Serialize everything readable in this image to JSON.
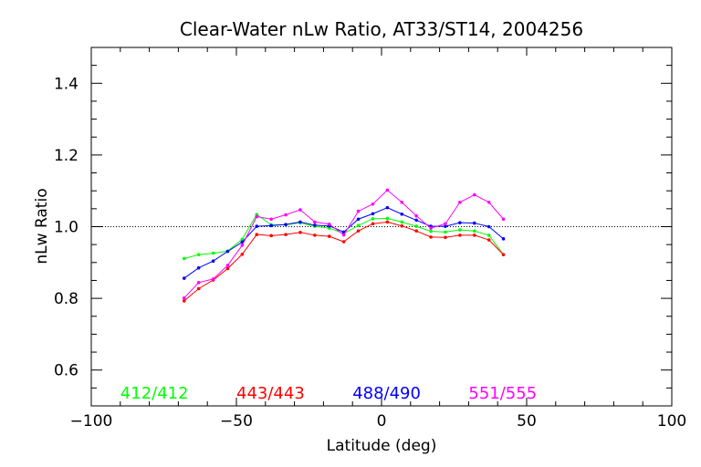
{
  "chart_data": {
    "type": "line",
    "title": "Clear-Water nLw Ratio, AT33/ST14, 2004256",
    "xlabel": "Latitude (deg)",
    "ylabel": "nLw Ratio",
    "xlim": [
      -100,
      100
    ],
    "ylim": [
      0.5,
      1.5
    ],
    "x_ticks": [
      -100,
      -50,
      0,
      50,
      100
    ],
    "y_ticks": [
      0.6,
      0.8,
      1.0,
      1.2,
      1.4
    ],
    "x_tick_labels": [
      "−100",
      "−50",
      "0",
      "50",
      "100"
    ],
    "y_tick_labels": [
      "0.6",
      "0.8",
      "1.0",
      "1.2",
      "1.4"
    ],
    "reference_line": 1.0,
    "grid": false,
    "legend_position": "bottom",
    "x": [
      -68,
      -63,
      -58,
      -53,
      -48,
      -43,
      -38,
      -33,
      -28,
      -23,
      -18,
      -13,
      -8,
      -3,
      2,
      7,
      12,
      17,
      22,
      27,
      32,
      37,
      42
    ],
    "series": [
      {
        "name": "412/412",
        "color": "#00ff00",
        "values": [
          0.911,
          0.922,
          0.926,
          0.932,
          0.965,
          1.034,
          1.005,
          1.005,
          1.011,
          1.001,
          0.996,
          0.981,
          1.003,
          1.022,
          1.023,
          1.013,
          1.001,
          0.987,
          0.985,
          0.991,
          0.988,
          0.976,
          0.922
        ]
      },
      {
        "name": "443/443",
        "color": "#ff0000",
        "values": [
          0.793,
          0.827,
          0.851,
          0.883,
          0.923,
          0.978,
          0.975,
          0.978,
          0.984,
          0.976,
          0.973,
          0.958,
          0.988,
          1.008,
          1.013,
          1.002,
          0.988,
          0.971,
          0.97,
          0.976,
          0.976,
          0.963,
          0.922
        ]
      },
      {
        "name": "488/490",
        "color": "#0000ff",
        "values": [
          0.856,
          0.885,
          0.904,
          0.931,
          0.957,
          1.001,
          1.003,
          1.006,
          1.013,
          1.004,
          1.002,
          0.985,
          1.021,
          1.036,
          1.053,
          1.035,
          1.018,
          1.001,
          1.001,
          1.011,
          1.01,
          1.0,
          0.966
        ]
      },
      {
        "name": "551/555",
        "color": "#ff00ff",
        "values": [
          0.801,
          0.844,
          0.854,
          0.892,
          0.948,
          1.028,
          1.021,
          1.033,
          1.047,
          1.013,
          1.007,
          0.977,
          1.043,
          1.063,
          1.102,
          1.068,
          1.03,
          0.996,
          1.008,
          1.068,
          1.089,
          1.068,
          1.021
        ]
      }
    ]
  }
}
